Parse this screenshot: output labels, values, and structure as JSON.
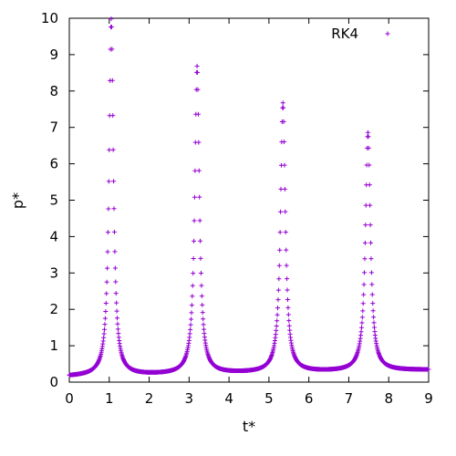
{
  "chart_data": {
    "type": "scatter",
    "xlabel": "t*",
    "ylabel": "p*",
    "xlim": [
      0,
      9
    ],
    "ylim": [
      0,
      10
    ],
    "xticks": [
      "0",
      "1",
      "2",
      "3",
      "4",
      "5",
      "6",
      "7",
      "8",
      "9"
    ],
    "yticks": [
      "0",
      "1",
      "2",
      "3",
      "4",
      "5",
      "6",
      "7",
      "8",
      "9",
      "10"
    ],
    "grid": false,
    "legend_position": "top-right",
    "series": [
      {
        "name": "RK4",
        "color": "#9400d3",
        "marker": "plus",
        "peaks": [
          {
            "t": 1.05,
            "p": 9.8
          },
          {
            "t": 3.2,
            "p": 8.45
          },
          {
            "t": 5.35,
            "p": 7.4
          },
          {
            "t": 7.48,
            "p": 6.55
          }
        ],
        "troughs": [
          {
            "t": 0.0,
            "p": 0.15
          },
          {
            "t": 2.15,
            "p": 0.17
          },
          {
            "t": 4.25,
            "p": 0.19
          },
          {
            "t": 6.45,
            "p": 0.2
          },
          {
            "t": 9.0,
            "p": 0.33
          }
        ]
      }
    ]
  }
}
